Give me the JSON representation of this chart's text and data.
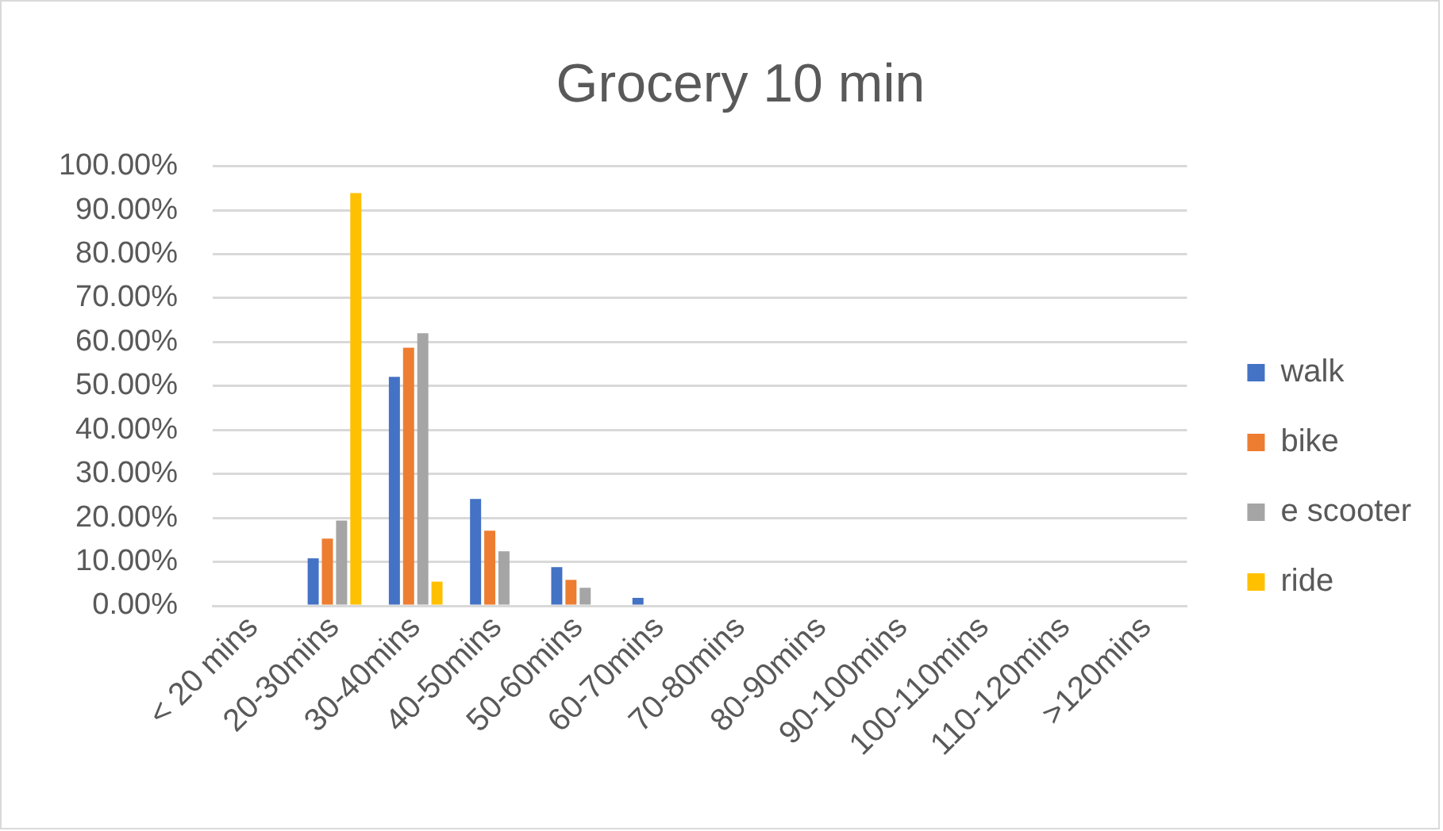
{
  "chart_data": {
    "type": "bar",
    "title": "Grocery 10 min",
    "categories": [
      "< 20 mins",
      "20-30mins",
      "30-40mins",
      "40-50mins",
      "50-60mins",
      "60-70mins",
      "70-80mins",
      "80-90mins",
      "90-100mins",
      "100-110mins",
      "110-120mins",
      ">120mins"
    ],
    "series": [
      {
        "name": "walk",
        "color": "#4472c4",
        "values": [
          0,
          10.8,
          52.1,
          24.3,
          8.8,
          1.8,
          0,
          0,
          0,
          0,
          0,
          0
        ]
      },
      {
        "name": "bike",
        "color": "#ed7d31",
        "values": [
          0,
          15.3,
          58.7,
          17.1,
          5.9,
          0,
          0,
          0,
          0,
          0,
          0,
          0
        ]
      },
      {
        "name": "e scooter",
        "color": "#a5a5a5",
        "values": [
          0,
          19.4,
          62.0,
          12.4,
          4.1,
          0,
          0,
          0,
          0,
          0,
          0,
          0
        ]
      },
      {
        "name": "ride",
        "color": "#ffc000",
        "values": [
          0,
          93.9,
          5.5,
          0,
          0,
          0,
          0,
          0,
          0,
          0,
          0,
          0
        ]
      }
    ],
    "ylim": [
      0,
      100
    ],
    "yticks": [
      {
        "value": 0,
        "label": "0.00%"
      },
      {
        "value": 10,
        "label": "10.00%"
      },
      {
        "value": 20,
        "label": "20.00%"
      },
      {
        "value": 30,
        "label": "30.00%"
      },
      {
        "value": 40,
        "label": "40.00%"
      },
      {
        "value": 50,
        "label": "50.00%"
      },
      {
        "value": 60,
        "label": "60.00%"
      },
      {
        "value": 70,
        "label": "70.00%"
      },
      {
        "value": 80,
        "label": "80.00%"
      },
      {
        "value": 90,
        "label": "90.00%"
      },
      {
        "value": 100,
        "label": "100.00%"
      }
    ],
    "grid": "y",
    "legend": "right"
  }
}
